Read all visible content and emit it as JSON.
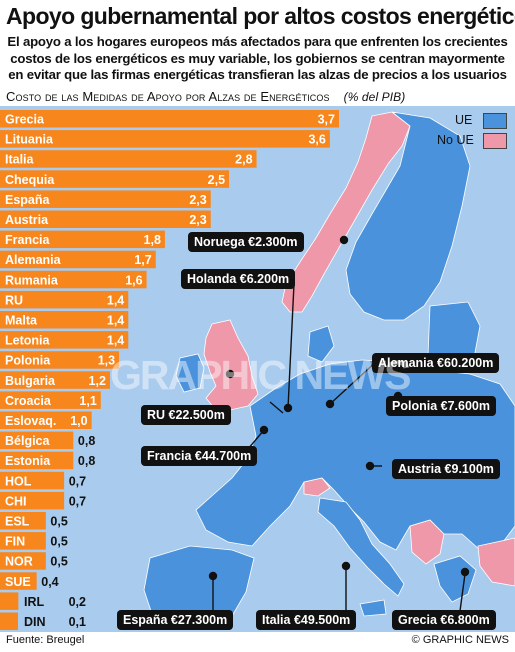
{
  "header": {
    "title": "Apoyo gubernamental por altos costos energéticos",
    "subtitle": "El apoyo a los hogares europeos más afectados para que enfrenten los crecientes costos de los energéticos es muy variable, los gobiernos se centran mayormente en evitar que las firmas energéticas transfieran las alzas de precios a los usuarios"
  },
  "chart_data": {
    "type": "bar",
    "orientation": "horizontal",
    "title": "Costo de las Medidas de Apoyo por Alzas de Energéticos",
    "unit_label": "(% del PIB)",
    "categories": [
      "Grecia",
      "Lituania",
      "Italia",
      "Chequia",
      "España",
      "Austria",
      "Francia",
      "Alemania",
      "Rumania",
      "RU",
      "Malta",
      "Letonia",
      "Polonia",
      "Bulgaria",
      "Croacia",
      "Eslovaq.",
      "Bélgica",
      "Estonia",
      "HOL",
      "CHI",
      "ESL",
      "FIN",
      "NOR",
      "SUE",
      "IRL",
      "DIN"
    ],
    "values": [
      3.7,
      3.6,
      2.8,
      2.5,
      2.3,
      2.3,
      1.8,
      1.7,
      1.6,
      1.4,
      1.4,
      1.4,
      1.3,
      1.2,
      1.1,
      1.0,
      0.8,
      0.8,
      0.7,
      0.7,
      0.5,
      0.5,
      0.5,
      0.4,
      0.2,
      0.1
    ],
    "value_labels": [
      "3,7",
      "3,6",
      "2,8",
      "2,5",
      "2,3",
      "2,3",
      "1,8",
      "1,7",
      "1,6",
      "1,4",
      "1,4",
      "1,4",
      "1,3",
      "1,2",
      "1,1",
      "1,0",
      "0,8",
      "0,8",
      "0,7",
      "0,7",
      "0,5",
      "0,5",
      "0,5",
      "0,4",
      "0,2",
      "0,1"
    ],
    "bar_color": "#f7861d"
  },
  "map": {
    "legend": [
      {
        "label": "UE",
        "color": "#4a93dc"
      },
      {
        "label": "No UE",
        "color": "#ee98aa"
      }
    ],
    "sea_color": "#a9cbee",
    "callouts": [
      {
        "text": "Noruega €2.300m"
      },
      {
        "text": "Holanda €6.200m"
      },
      {
        "text": "Alemania €60.200m"
      },
      {
        "text": "Polonia €7.600m"
      },
      {
        "text": "RU €22.500m"
      },
      {
        "text": "Francia €44.700m"
      },
      {
        "text": "Austria €9.100m"
      },
      {
        "text": "España €27.300m"
      },
      {
        "text": "Italia €49.500m"
      },
      {
        "text": "Grecia €6.800m"
      }
    ]
  },
  "watermark": "GRAPHIC NEWS",
  "footer": {
    "source": "Fuente: Breugel",
    "credit": "© GRAPHIC NEWS"
  }
}
